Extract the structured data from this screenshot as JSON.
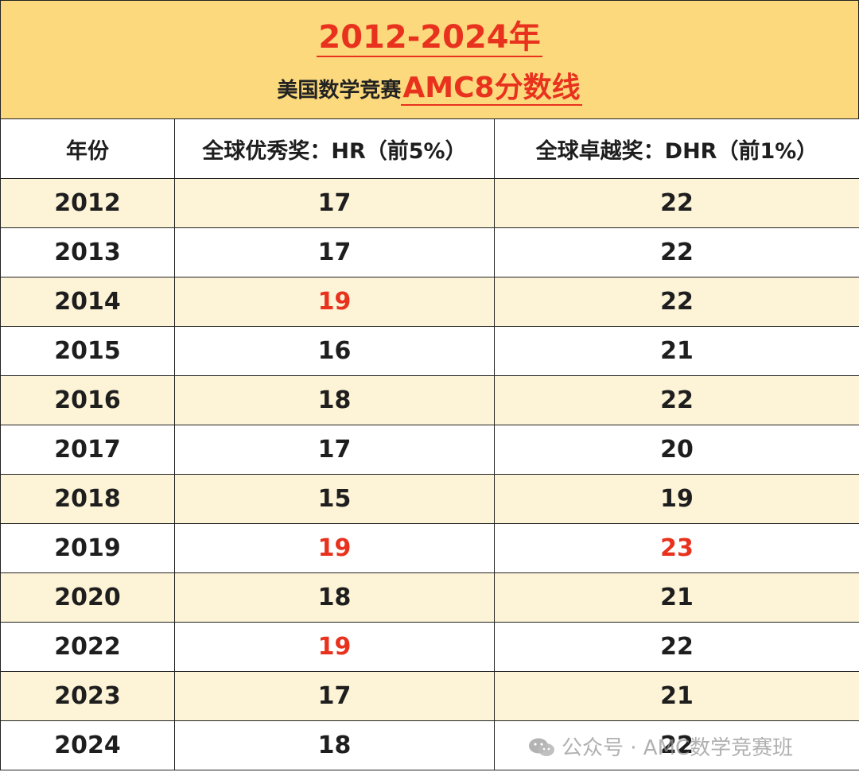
{
  "header": {
    "title": "2012-2024年",
    "subtitle_prefix": "美国数学竞赛",
    "subtitle_accent": "AMC8分数线"
  },
  "table": {
    "columns": [
      "年份",
      "全球优秀奖：HR（前5%）",
      "全球卓越奖：DHR（前1%）"
    ],
    "rows": [
      {
        "year": "2012",
        "hr": "17",
        "dhr": "22"
      },
      {
        "year": "2013",
        "hr": "17",
        "dhr": "22"
      },
      {
        "year": "2014",
        "hr": "19",
        "dhr": "22"
      },
      {
        "year": "2015",
        "hr": "16",
        "dhr": "21"
      },
      {
        "year": "2016",
        "hr": "18",
        "dhr": "22"
      },
      {
        "year": "2017",
        "hr": "17",
        "dhr": "20"
      },
      {
        "year": "2018",
        "hr": "15",
        "dhr": "19"
      },
      {
        "year": "2019",
        "hr": "19",
        "dhr": "23"
      },
      {
        "year": "2020",
        "hr": "18",
        "dhr": "21"
      },
      {
        "year": "2022",
        "hr": "19",
        "dhr": "22"
      },
      {
        "year": "2023",
        "hr": "17",
        "dhr": "21"
      },
      {
        "year": "2024",
        "hr": "18",
        "dhr": "22"
      }
    ],
    "highlighted_cells": [
      "2014.hr",
      "2019.hr",
      "2019.dhr",
      "2022.hr"
    ]
  },
  "watermark": {
    "text": "公众号 · AMC数学竞赛班",
    "icon": "wechat-icon"
  },
  "colors": {
    "header_bg": "#fbd97c",
    "accent_red": "#e8321e",
    "row_alt_bg": "#fdf3d6",
    "text": "#1e1e1e"
  }
}
